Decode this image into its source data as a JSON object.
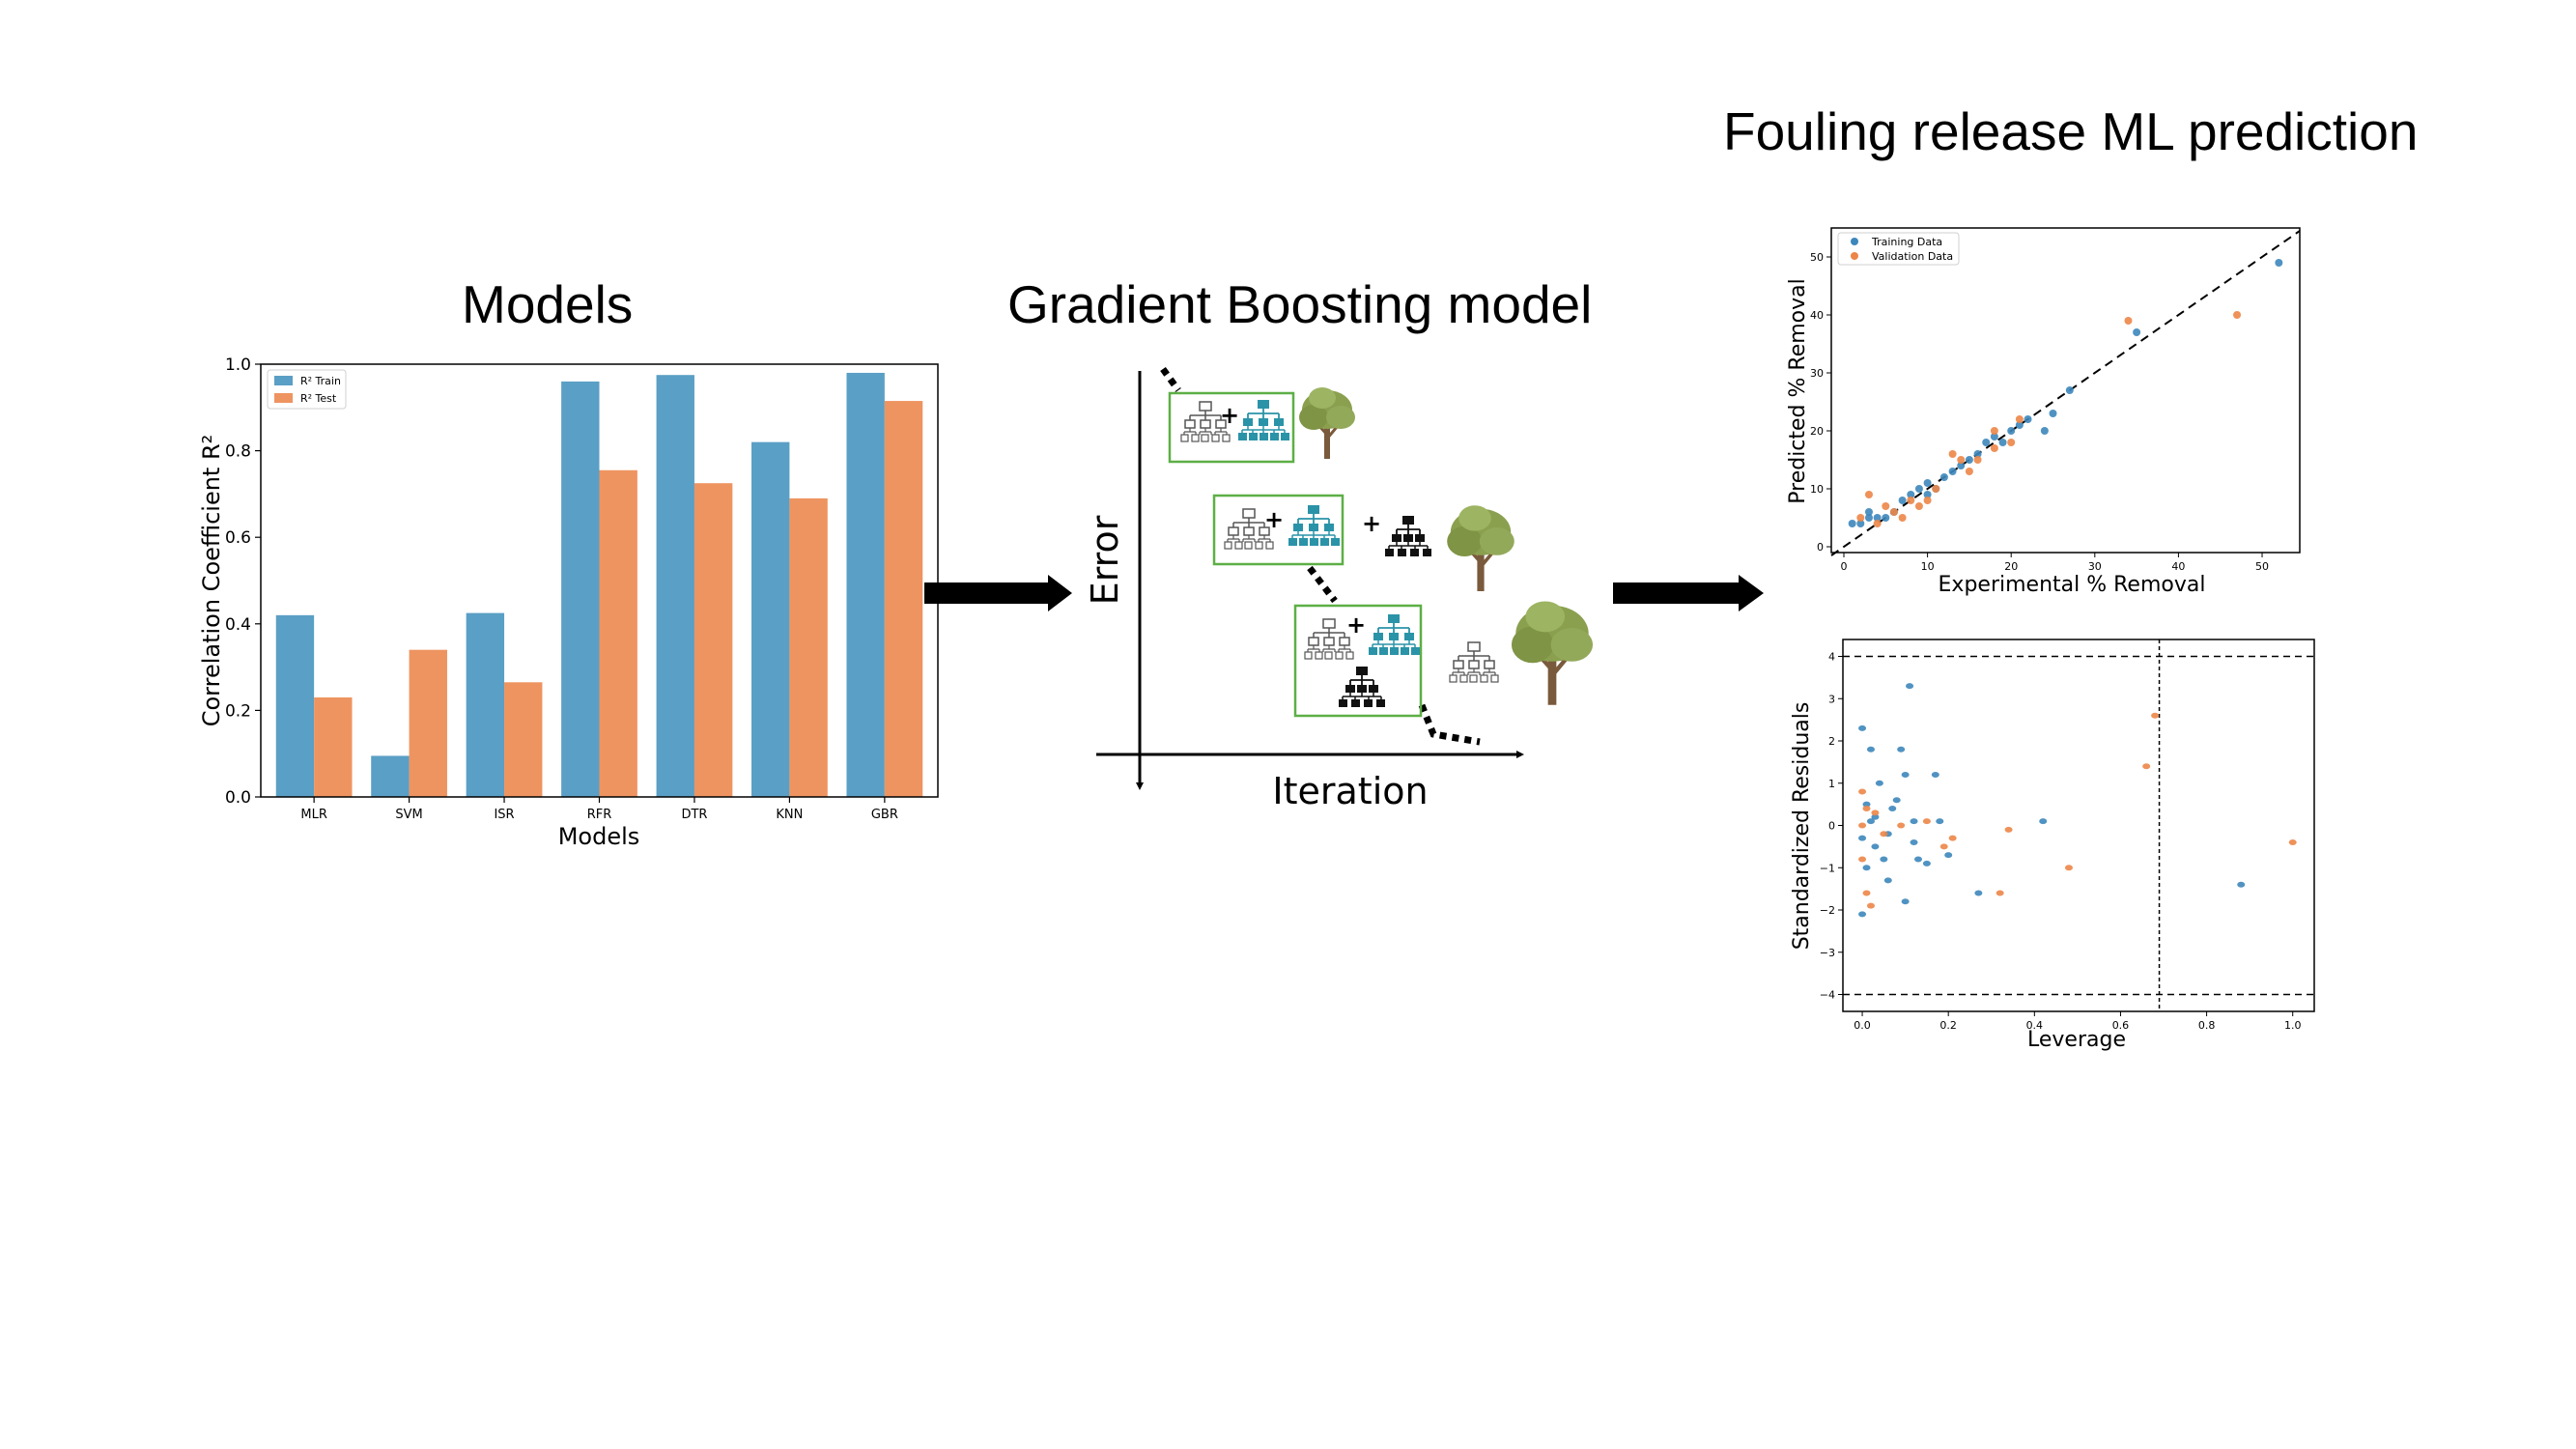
{
  "headings": {
    "models": "Models",
    "boosting": "Gradient Boosting model",
    "fouling": "Fouling release ML prediction"
  },
  "colors": {
    "train": "#5a9fc5",
    "test": "#ee9460",
    "box_outline": "#5daf46",
    "tree_teal": "#2a93a8",
    "tree_foliage": "#8aa04f",
    "tree_trunk": "#7a5a3c"
  },
  "chart_data": [
    {
      "type": "bar",
      "categories": [
        "MLR",
        "SVM",
        "ISR",
        "RFR",
        "DTR",
        "KNN",
        "GBR"
      ],
      "series": [
        {
          "name": "R² Train",
          "values": [
            0.42,
            0.095,
            0.425,
            0.96,
            0.975,
            0.82,
            0.98
          ]
        },
        {
          "name": "R² Test",
          "values": [
            0.23,
            0.34,
            0.265,
            0.755,
            0.725,
            0.69,
            0.915
          ]
        }
      ],
      "xlabel": "Models",
      "ylabel": "Correlation Coefficient R²",
      "ylim": [
        0,
        1.0
      ],
      "yticks": [
        "0.0",
        "0.2",
        "0.4",
        "0.6",
        "0.8",
        "1.0"
      ],
      "legend": "top-left",
      "grid": false
    },
    {
      "type": "scatter",
      "xlabel": "Experimental % Removal",
      "ylabel": "Predicted % Removal",
      "xlim": [
        -1.5,
        54.5
      ],
      "ylim": [
        -1,
        55
      ],
      "xticks": [
        "0",
        "10",
        "20",
        "30",
        "40",
        "50"
      ],
      "yticks": [
        "0",
        "10",
        "20",
        "30",
        "40",
        "50"
      ],
      "reference_line": "y = x (dashed)",
      "legend": "top-left",
      "series": [
        {
          "name": "Training Data",
          "points": [
            [
              1,
              4
            ],
            [
              2,
              4
            ],
            [
              3,
              5
            ],
            [
              3,
              6
            ],
            [
              4,
              5
            ],
            [
              5,
              5
            ],
            [
              6,
              6
            ],
            [
              7,
              8
            ],
            [
              8,
              9
            ],
            [
              9,
              10
            ],
            [
              10,
              11
            ],
            [
              10,
              9
            ],
            [
              11,
              10
            ],
            [
              12,
              12
            ],
            [
              13,
              13
            ],
            [
              14,
              14
            ],
            [
              15,
              15
            ],
            [
              16,
              16
            ],
            [
              17,
              18
            ],
            [
              18,
              19
            ],
            [
              19,
              18
            ],
            [
              20,
              20
            ],
            [
              21,
              21
            ],
            [
              22,
              22
            ],
            [
              24,
              20
            ],
            [
              25,
              23
            ],
            [
              27,
              27
            ],
            [
              35,
              37
            ],
            [
              52,
              49
            ]
          ]
        },
        {
          "name": "Validation Data",
          "points": [
            [
              2,
              5
            ],
            [
              3,
              9
            ],
            [
              4,
              4
            ],
            [
              5,
              7
            ],
            [
              6,
              6
            ],
            [
              7,
              5
            ],
            [
              8,
              8
            ],
            [
              9,
              7
            ],
            [
              10,
              8
            ],
            [
              11,
              10
            ],
            [
              13,
              16
            ],
            [
              14,
              15
            ],
            [
              15,
              13
            ],
            [
              16,
              15
            ],
            [
              18,
              20
            ],
            [
              18,
              17
            ],
            [
              20,
              18
            ],
            [
              21,
              22
            ],
            [
              34,
              39
            ],
            [
              47,
              40
            ]
          ]
        }
      ]
    },
    {
      "type": "scatter",
      "xlabel": "Leverage",
      "ylabel": "Standardized Residuals",
      "xlim": [
        -0.045,
        1.05
      ],
      "ylim": [
        -4.4,
        4.4
      ],
      "xticks": [
        "0.0",
        "0.2",
        "0.4",
        "0.6",
        "0.8",
        "1.0"
      ],
      "yticks": [
        "−4",
        "−3",
        "−2",
        "−1",
        "0",
        "1",
        "2",
        "3",
        "4"
      ],
      "threshold_lines": {
        "leverage": 0.69,
        "residual_upper": 4,
        "residual_lower": -4
      },
      "series": [
        {
          "name": "Training Data",
          "points": [
            [
              0.0,
              2.3
            ],
            [
              0.02,
              1.8
            ],
            [
              0.04,
              1.0
            ],
            [
              0.01,
              0.5
            ],
            [
              0.02,
              0.1
            ],
            [
              0.0,
              -0.3
            ],
            [
              0.03,
              -0.5
            ],
            [
              0.05,
              -0.8
            ],
            [
              0.06,
              -1.3
            ],
            [
              0.08,
              0.6
            ],
            [
              0.09,
              1.8
            ],
            [
              0.11,
              3.3
            ],
            [
              0.1,
              1.2
            ],
            [
              0.12,
              0.1
            ],
            [
              0.13,
              -0.8
            ],
            [
              0.1,
              -1.8
            ],
            [
              0.15,
              -0.9
            ],
            [
              0.17,
              1.2
            ],
            [
              0.18,
              0.1
            ],
            [
              0.2,
              -0.7
            ],
            [
              0.27,
              -1.6
            ],
            [
              0.42,
              0.1
            ],
            [
              0.88,
              -1.4
            ],
            [
              0.0,
              -2.1
            ],
            [
              0.01,
              -1.0
            ],
            [
              0.03,
              0.2
            ],
            [
              0.06,
              -0.2
            ],
            [
              0.07,
              0.4
            ],
            [
              0.12,
              -0.4
            ]
          ]
        },
        {
          "name": "Validation Data",
          "points": [
            [
              0.0,
              0.8
            ],
            [
              0.0,
              -0.8
            ],
            [
              0.01,
              -1.6
            ],
            [
              0.02,
              -1.9
            ],
            [
              0.03,
              0.3
            ],
            [
              0.05,
              -0.2
            ],
            [
              0.09,
              0.0
            ],
            [
              0.15,
              0.1
            ],
            [
              0.19,
              -0.5
            ],
            [
              0.21,
              -0.3
            ],
            [
              0.32,
              -1.6
            ],
            [
              0.34,
              -0.1
            ],
            [
              0.48,
              -1.0
            ],
            [
              0.66,
              1.4
            ],
            [
              0.68,
              2.6
            ],
            [
              1.0,
              -0.4
            ],
            [
              0.0,
              0.0
            ],
            [
              0.01,
              0.4
            ]
          ]
        }
      ]
    },
    {
      "type": "line",
      "xlabel": "Iteration",
      "ylabel": "Error",
      "description_of_series": "decreasing dotted error curve"
    }
  ]
}
